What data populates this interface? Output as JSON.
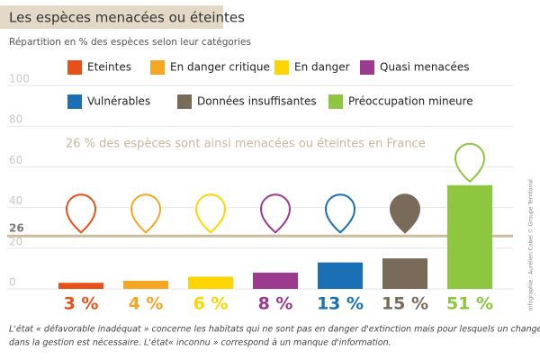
{
  "chart_data": {
    "type": "bar",
    "title": "Les espèces menacées ou éteintes",
    "subtitle": "Répartition en % des espèces selon leur catégories",
    "annotation": "26 % des espèces sont ainsi menacées ou éteintes en France",
    "categories": [
      "Eteintes",
      "En danger critique",
      "En danger",
      "Quasi menacées",
      "Vulnérables",
      "Données insuffisantes",
      "Préoccupation mineure"
    ],
    "colors": [
      "#e8501a",
      "#f5a623",
      "#ffd500",
      "#9b3a8f",
      "#1a6fb5",
      "#7a6a5a",
      "#8dc63f"
    ],
    "values": [
      3,
      4,
      6,
      8,
      13,
      15,
      51
    ],
    "value_labels": [
      "3 %",
      "4 %",
      "6 %",
      "8 %",
      "13 %",
      "15 %",
      "51 %"
    ],
    "ylim": [
      0,
      100
    ],
    "yticks": [
      0,
      20,
      40,
      60,
      80,
      100
    ],
    "reference_value": 26,
    "footnote": [
      "L'état  « défavorable inadéquat » concerne les habitats qui ne sont pas en danger d'extinction mais pour lesquels un changement",
      "dans la gestion est nécessaire. L'état«  inconnu » correspond à un manque d'information."
    ],
    "credit": "Infographie : Aurélien Cabel © Groupe Territorial"
  }
}
